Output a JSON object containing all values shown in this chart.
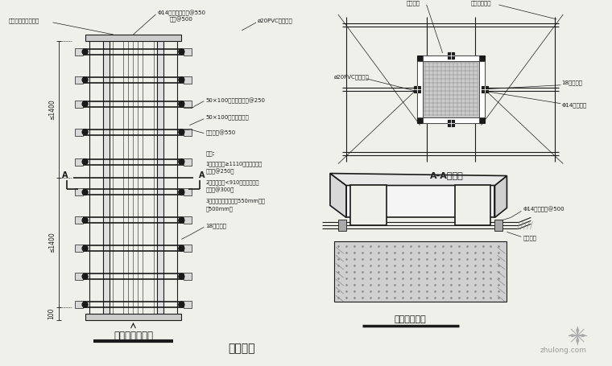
{
  "bg_color": "#f0f0eb",
  "line_color": "#1a1a1a",
  "title_bottom": "（图四）",
  "left_title": "柱模立面大样图",
  "right_top_title": "A-A剖面图",
  "right_bottom_title": "柱帽模板大样",
  "label_top_left": "红油漆涂上轴线标志",
  "label_top_center": "Φ14对拉螺栓竖向@550",
  "label_top_center2": "横向@500",
  "label_pvc": "ø20PVC塑料套管",
  "label_wood1": "50×100木枋（背楞）@250",
  "label_wood2": "50×100木枋（背楞）",
  "label_steel_clamp": "钢管夹具@550",
  "label_18mm": "18厚九夹板",
  "note_title": "说明:",
  "note1": "1、柱截面宽≥1110以上，柱模背",
  "note2": "撑木枋@250。",
  "note3": "2、柱截面宽<910以下，柱模背",
  "note4": "撑木枋@300。",
  "note5": "3、柱螺栓间距：竖向550mm；横",
  "note6": "向500mm。",
  "label_dim1": "≤1400",
  "label_dim2": "≤1400",
  "label_dim3": "100",
  "label_sec_steel": "钢筋砼柱",
  "label_sec_support": "钢管锚定支架",
  "label_sec_18mm": "18厚九夹板",
  "label_sec_bolt": "Φ14对拉螺栓",
  "label_cap_bolt": "Φ14对拉螺栓@500",
  "label_cap_clamp": "钢管夹具",
  "label_A": "A",
  "watermark": "zhulong.com"
}
